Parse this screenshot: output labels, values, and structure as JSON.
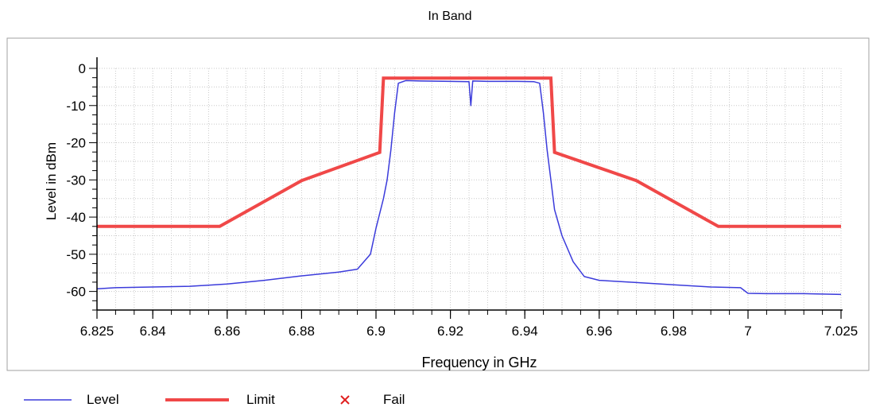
{
  "chart_data": {
    "type": "line",
    "title": "In Band",
    "xlabel": "Frequency in GHz",
    "ylabel": "Level in dBm",
    "xlim": [
      6.825,
      7.025
    ],
    "ylim": [
      -65,
      0
    ],
    "x_ticks": [
      "6.825",
      "6.84",
      "6.86",
      "6.88",
      "6.9",
      "6.92",
      "6.94",
      "6.96",
      "6.98",
      "7",
      "7.025"
    ],
    "x_tick_values": [
      6.825,
      6.84,
      6.86,
      6.88,
      6.9,
      6.92,
      6.94,
      6.96,
      6.98,
      7.0,
      7.025
    ],
    "y_ticks": [
      "0",
      "-10",
      "-20",
      "-30",
      "-40",
      "-50",
      "-60"
    ],
    "y_tick_values": [
      0,
      -10,
      -20,
      -30,
      -40,
      -50,
      -60
    ],
    "grid": true,
    "legend_position": "bottom",
    "series": [
      {
        "name": "Level",
        "color": "#3b3bdb",
        "x": [
          6.825,
          6.83,
          6.84,
          6.85,
          6.86,
          6.87,
          6.88,
          6.89,
          6.895,
          6.8985,
          6.9,
          6.902,
          6.903,
          6.904,
          6.905,
          6.906,
          6.908,
          6.912,
          6.92,
          6.925,
          6.9255,
          6.926,
          6.93,
          6.938,
          6.9425,
          6.944,
          6.945,
          6.946,
          6.947,
          6.948,
          6.95,
          6.953,
          6.956,
          6.96,
          6.97,
          6.98,
          6.99,
          6.998,
          7.0,
          7.005,
          7.015,
          7.025
        ],
        "y": [
          -59.3,
          -59,
          -58.8,
          -58.6,
          -58,
          -57,
          -55.8,
          -54.8,
          -54,
          -50,
          -43,
          -35,
          -30,
          -22,
          -12,
          -4,
          -3.3,
          -3.4,
          -3.5,
          -3.6,
          -10,
          -3.4,
          -3.5,
          -3.5,
          -3.6,
          -4,
          -12,
          -22,
          -30,
          -38,
          -45,
          -52,
          -56,
          -57,
          -57.6,
          -58.2,
          -58.8,
          -59,
          -60.5,
          -60.6,
          -60.6,
          -60.8
        ]
      },
      {
        "name": "Limit",
        "color": "#f04848",
        "x": [
          6.825,
          6.858,
          6.88,
          6.901,
          6.902,
          6.947,
          6.948,
          6.97,
          6.992,
          7.025
        ],
        "y": [
          -42.5,
          -42.5,
          -30.2,
          -22.6,
          -2.6,
          -2.6,
          -22.6,
          -30.2,
          -42.5,
          -42.5
        ]
      },
      {
        "name": "Fail",
        "color": "#e02020",
        "x": [],
        "y": []
      }
    ]
  }
}
